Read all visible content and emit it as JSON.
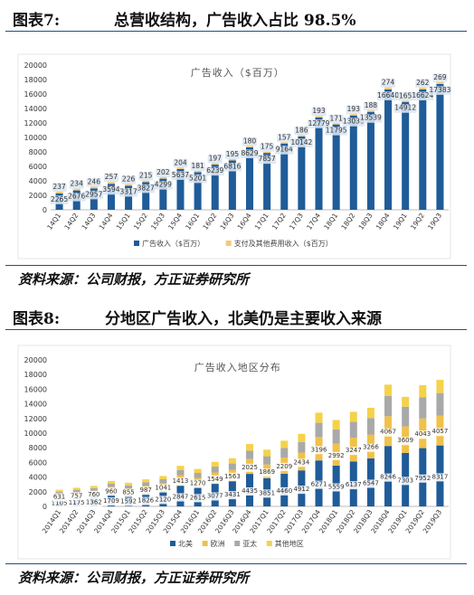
{
  "figure1": {
    "label": "图表7:",
    "title": "总营收结构，广告收入占比 98.5%",
    "source": "资料来源：公司财报，方正证券研究所",
    "chart_data": {
      "type": "bar",
      "stacked": true,
      "title": "广告收入（$百万）",
      "categories": [
        "14Q1",
        "14Q2",
        "14Q3",
        "14Q4",
        "15Q1",
        "15Q2",
        "15Q3",
        "15Q4",
        "16Q1",
        "16Q2",
        "16Q3",
        "16Q4",
        "17Q1",
        "17Q2",
        "17Q3",
        "17Q4",
        "18Q1",
        "18Q2",
        "18Q3",
        "18Q4",
        "19Q1",
        "19Q2",
        "19Q3"
      ],
      "series": [
        {
          "name": "广告收入（$百万）",
          "color": "#1f5c99",
          "values": [
            2265,
            2676,
            2957,
            3594,
            3317,
            3827,
            4299,
            5637,
            5201,
            6239,
            6816,
            8629,
            7857,
            9164,
            10142,
            12779,
            11795,
            13038,
            13539,
            16640,
            14912,
            16624,
            17383
          ],
          "labels": [
            "2265",
            "2676",
            "2957",
            "3594",
            "3317",
            "3827",
            "4299",
            "5637",
            "5201",
            "6239",
            "6816",
            "8629",
            "7857",
            "9164",
            "10142",
            "12779",
            "11795",
            "13038",
            "13539",
            "16640",
            "14912",
            "16624",
            "17383"
          ]
        },
        {
          "name": "支付及其他费用收入（$百万）",
          "color": "#f4c97a",
          "values": [
            237,
            234,
            246,
            257,
            226,
            215,
            202,
            204,
            181,
            197,
            195,
            180,
            175,
            157,
            186,
            193,
            171,
            193,
            188,
            274,
            165,
            262,
            269
          ],
          "labels": [
            "237",
            "234",
            "246",
            "257",
            "226",
            "215",
            "202",
            "204",
            "181",
            "197",
            "195",
            "180",
            "175",
            "157",
            "186",
            "193",
            "171",
            "193",
            "188",
            "274",
            "165",
            "262",
            "269"
          ]
        }
      ],
      "ylim": [
        0,
        20000
      ],
      "yticks": [
        "0",
        "2000",
        "4000",
        "6000",
        "8000",
        "10000",
        "12000",
        "14000",
        "16000",
        "18000",
        "20000"
      ],
      "legend_position": "bottom",
      "grid": false
    }
  },
  "figure2": {
    "label": "图表8:",
    "title": "分地区广告收入，北美仍是主要收入来源",
    "source": "资料来源：公司财报，方正证券研究所",
    "chart_data": {
      "type": "bar",
      "stacked": true,
      "title": "广告收入地区分布",
      "categories": [
        "2014Q1",
        "2014Q2",
        "2014Q3",
        "2014Q4",
        "2015Q1",
        "2015Q2",
        "2015Q3",
        "2015Q4",
        "2016Q1",
        "2016Q2",
        "2016Q3",
        "2016Q4",
        "2017Q1",
        "2017Q2",
        "2017Q3",
        "2017Q4",
        "2018Q1",
        "2018Q2",
        "2018Q3",
        "2018Q4",
        "2019Q1",
        "2019Q2",
        "2019Q3"
      ],
      "series": [
        {
          "name": "北美",
          "color": "#1f5c99",
          "values": [
            1105,
            1175,
            1362,
            1709,
            1592,
            1826,
            2120,
            2847,
            2615,
            3077,
            3431,
            4435,
            3851,
            4460,
            4912,
            6271,
            5559,
            6137,
            6547,
            8246,
            7303,
            7952,
            8317
          ],
          "labels": [
            "1105",
            "1175",
            "1362",
            "1709",
            "1592",
            "1826",
            "2120",
            "2847",
            "2615",
            "3077",
            "3431",
            "4435",
            "3851",
            "4460",
            "4912",
            "6271",
            "5559",
            "6137",
            "6547",
            "8246",
            "7303",
            "7952",
            "8317"
          ]
        },
        {
          "name": "欧洲",
          "color": "#f0c14b",
          "values": [
            631,
            757,
            760,
            960,
            855,
            987,
            1041,
            1413,
            1270,
            1549,
            1563,
            2025,
            1869,
            2209,
            2434,
            3196,
            2992,
            3247,
            3266,
            4067,
            3609,
            4043,
            4057
          ],
          "labels": [
            "631",
            "757",
            "760",
            "960",
            "855",
            "987",
            "1041",
            "1413",
            "1270",
            "1549",
            "1563",
            "2025",
            "1869",
            "2209",
            "2434",
            "3196",
            "2992",
            "3247",
            "3266",
            "4067",
            "3609",
            "4043",
            "4057"
          ]
        },
        {
          "name": "亚太",
          "color": "#a9a9a9",
          "values": [
            280,
            330,
            360,
            420,
            420,
            480,
            540,
            720,
            680,
            800,
            860,
            1150,
            1120,
            1300,
            1450,
            1940,
            1950,
            2150,
            2250,
            2750,
            2700,
            2900,
            3100
          ],
          "labels": []
        },
        {
          "name": "其他地区",
          "color": "#f5d24a",
          "values": [
            250,
            280,
            310,
            370,
            360,
            400,
            440,
            560,
            540,
            650,
            720,
            900,
            900,
            1000,
            1100,
            1390,
            1300,
            1380,
            1400,
            1560,
            1350,
            1650,
            1800
          ],
          "labels": []
        }
      ],
      "ylim": [
        0,
        20000
      ],
      "yticks": [
        "0",
        "2000",
        "4000",
        "6000",
        "8000",
        "10000",
        "12000",
        "14000",
        "16000",
        "18000",
        "20000"
      ],
      "legend_position": "bottom",
      "grid": false
    }
  }
}
